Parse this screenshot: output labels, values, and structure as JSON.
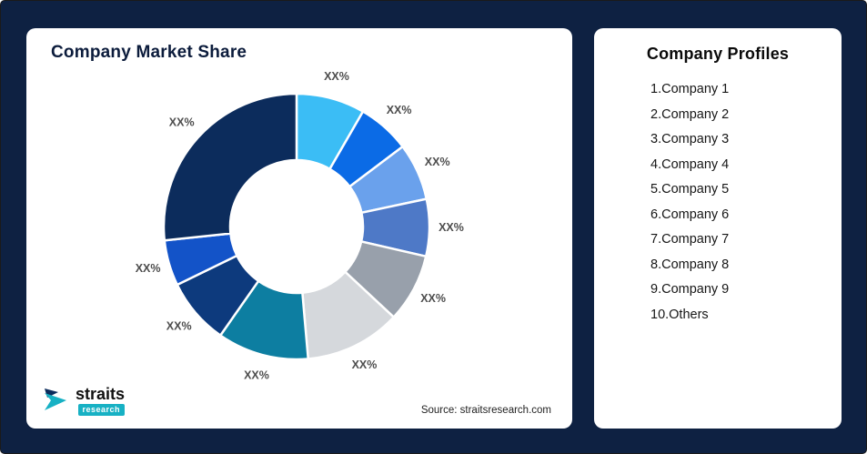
{
  "theme": {
    "background": "#0e2142",
    "card_bg": "#ffffff",
    "title_color": "#0c1c3c",
    "slice_label_color": "#4d4d4d",
    "logo_teal": "#17b1c4"
  },
  "left_card": {
    "title": "Company Market Share",
    "source_note": "Source: straitsresearch.com"
  },
  "logo": {
    "brand": "straits",
    "sub_brand": "research"
  },
  "right_card": {
    "title": "Company Profiles",
    "items": [
      "1.Company 1",
      "2.Company 2",
      "3.Company 3",
      "4.Company 4",
      "5.Company 5",
      "6.Company 6",
      "7.Company 7",
      "8.Company 8",
      "9.Company 9",
      "10.Others"
    ]
  },
  "chart_data": {
    "type": "pie",
    "title": "Company Market Share",
    "donut": true,
    "inner_radius_ratio": 0.5,
    "rotation_start_deg": 0,
    "legend_position": "none",
    "segments": [
      {
        "name": "Company 1",
        "display_label": "XX%",
        "arc_deg": 30,
        "pct_est": 8.3,
        "color": "#3bbdf5"
      },
      {
        "name": "Company 2",
        "display_label": "XX%",
        "arc_deg": 23,
        "pct_est": 6.4,
        "color": "#0b6be6"
      },
      {
        "name": "Company 3",
        "display_label": "XX%",
        "arc_deg": 25,
        "pct_est": 6.9,
        "color": "#6aa1ec"
      },
      {
        "name": "Company 4",
        "display_label": "XX%",
        "arc_deg": 25,
        "pct_est": 6.9,
        "color": "#4e79c7"
      },
      {
        "name": "Company 5",
        "display_label": "XX%",
        "arc_deg": 30,
        "pct_est": 8.3,
        "color": "#98a0ab"
      },
      {
        "name": "Company 6",
        "display_label": "XX%",
        "arc_deg": 42,
        "pct_est": 11.7,
        "color": "#d5d8dc"
      },
      {
        "name": "Company 7",
        "display_label": "XX%",
        "arc_deg": 40,
        "pct_est": 11.1,
        "color": "#0d7ea1"
      },
      {
        "name": "Company 8",
        "display_label": "XX%",
        "arc_deg": 29,
        "pct_est": 8.1,
        "color": "#0d3a7d"
      },
      {
        "name": "Company 9",
        "display_label": "XX%",
        "arc_deg": 20,
        "pct_est": 5.6,
        "color": "#1353c8"
      },
      {
        "name": "Others",
        "display_label": "XX%",
        "arc_deg": 96,
        "pct_est": 26.7,
        "color": "#0c2c5c"
      }
    ]
  }
}
